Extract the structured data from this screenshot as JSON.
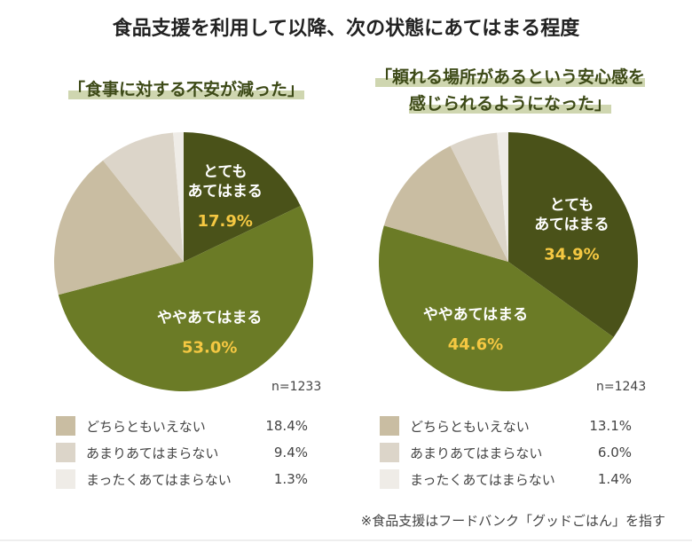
{
  "title": "食品支援を利用して以降、次の状態にあてはまる程度",
  "note": "※食品支援はフードバンク「グッドごはん」を指す",
  "colors": [
    "#4a5219",
    "#6b7b26",
    "#c9bda2",
    "#dcd5c9",
    "#efece7"
  ],
  "label_color": "#f5c842",
  "chart_data": [
    {
      "type": "pie",
      "title_lines": [
        "「食事に対する不安が減った」"
      ],
      "n": "n=1233",
      "categories": [
        "とてもあてはまる",
        "ややあてはまる",
        "どちらともいえない",
        "あまりあてはまらない",
        "まったくあてはまらない"
      ],
      "values": [
        17.9,
        53.0,
        18.4,
        9.4,
        1.3
      ],
      "slice_labels": [
        [
          "とても",
          "あてはまる"
        ],
        [
          "ややあてはまる"
        ]
      ],
      "value_labels": [
        "17.9%",
        "53.0%",
        "18.4%",
        "9.4%",
        "1.3%"
      ]
    },
    {
      "type": "pie",
      "title_lines": [
        "「頼れる場所があるという安心感を",
        "感じられるようになった」"
      ],
      "n": "n=1243",
      "categories": [
        "とてもあてはまる",
        "ややあてはまる",
        "どちらともいえない",
        "あまりあてはまらない",
        "まったくあてはまらない"
      ],
      "values": [
        34.9,
        44.6,
        13.1,
        6.0,
        1.4
      ],
      "slice_labels": [
        [
          "とても",
          "あてはまる"
        ],
        [
          "ややあてはまる"
        ]
      ],
      "value_labels": [
        "34.9%",
        "44.6%",
        "13.1%",
        "6.0%",
        "1.4%"
      ]
    }
  ]
}
